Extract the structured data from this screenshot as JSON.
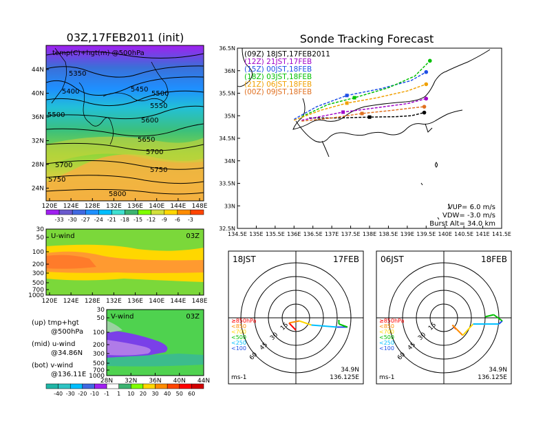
{
  "init_title": "03Z,17FEB2011 (init)",
  "main_title": "Sonde Tracking Forecast",
  "map_panel": {
    "label": "temp(C)+hgt(m) @500hPa",
    "x_ticks": [
      "120E",
      "124E",
      "128E",
      "132E",
      "136E",
      "140E",
      "144E",
      "148E"
    ],
    "y_ticks": [
      "44N",
      "40N",
      "36N",
      "32N",
      "28N",
      "24N"
    ],
    "contour_labels": [
      "5350",
      "5400",
      "5450",
      "5500",
      "5550",
      "5500",
      "5600",
      "5650",
      "5700",
      "5700",
      "5750",
      "5750",
      "5800",
      "5550",
      "5500",
      "5700",
      "5400"
    ],
    "colorbar": [
      "-33",
      "-30",
      "-27",
      "-24",
      "-21",
      "-18",
      "-15",
      "-12",
      "-9",
      "-6",
      "-3"
    ],
    "colorbar_colors": [
      "#a020f0",
      "#6a5acd",
      "#4169e1",
      "#1e90ff",
      "#00bfff",
      "#40e0d0",
      "#3cb371",
      "#7fff00",
      "#d2e03c",
      "#ffd700",
      "#ff8c00",
      "#ff4500"
    ]
  },
  "u_panel": {
    "label": "U-wind",
    "time": "03Z",
    "y_ticks": [
      "30",
      "50",
      "100",
      "200",
      "300",
      "500",
      "700",
      "1000"
    ],
    "x_ticks": [
      "120E",
      "124E",
      "128E",
      "132E",
      "136E",
      "140E",
      "144E",
      "148E"
    ]
  },
  "v_panel": {
    "label": "V-wind",
    "time": "03Z",
    "y_ticks": [
      "30",
      "50",
      "100",
      "200",
      "300",
      "500",
      "700",
      "1000"
    ],
    "x_ticks": [
      "28N",
      "32N",
      "36N",
      "40N",
      "44N"
    ],
    "colorbar": [
      "-40",
      "-30",
      "-20",
      "-10",
      "-1",
      "1",
      "10",
      "20",
      "30",
      "40",
      "50",
      "60"
    ],
    "colorbar_colors": [
      "#1fb5a6",
      "#2ec4c4",
      "#00bfff",
      "#4169e1",
      "#a020f0",
      "#ffffff",
      "#3cb371",
      "#7fff00",
      "#ffd700",
      "#ff8c00",
      "#ff4500",
      "#ff0000",
      "#d10000"
    ]
  },
  "side_notes": [
    {
      "line1": "(up) tmp+hgt",
      "line2": "@500hPa"
    },
    {
      "line1": "(mid) u-wind",
      "line2": "@34.86N"
    },
    {
      "line1": "(bot) v-wind",
      "line2": "@136.11E"
    }
  ],
  "chart_data": {
    "type": "line",
    "title": "Sonde Tracking Forecast",
    "xlim": [
      134.5,
      141.5
    ],
    "ylim": [
      32.5,
      36.5
    ],
    "x_ticks": [
      "134.5E",
      "135E",
      "135.5E",
      "136E",
      "136.5E",
      "137E",
      "137.5E",
      "138E",
      "138.5E",
      "139E",
      "139.5E",
      "140E",
      "140.5E",
      "141E",
      "141.5E"
    ],
    "y_ticks": [
      "36.5N",
      "36N",
      "35.5N",
      "35N",
      "34.5N",
      "34N",
      "33.5N",
      "33N",
      "32.5N"
    ],
    "series": [
      {
        "name": "(09Z) 18JST,17FEB2011",
        "color": "#000000",
        "dashed": true,
        "points": [
          [
            136.4,
            34.95
          ],
          [
            137.2,
            34.95
          ],
          [
            138.0,
            34.97
          ],
          [
            138.7,
            34.98
          ],
          [
            139.1,
            35.0
          ],
          [
            139.45,
            35.07
          ]
        ]
      },
      {
        "name": "(12Z) 21JST,17FEB",
        "color": "#a000c8",
        "dashed": true,
        "points": [
          [
            136.2,
            34.9
          ],
          [
            136.8,
            35.0
          ],
          [
            137.3,
            35.08
          ],
          [
            138.2,
            35.18
          ],
          [
            139.0,
            35.27
          ],
          [
            139.5,
            35.38
          ]
        ]
      },
      {
        "name": "(15Z) 00JST,18FEB",
        "color": "#1e4fe6",
        "dashed": true,
        "points": [
          [
            136.0,
            34.92
          ],
          [
            136.6,
            35.2
          ],
          [
            137.4,
            35.45
          ],
          [
            138.3,
            35.6
          ],
          [
            139.1,
            35.78
          ],
          [
            139.5,
            35.97
          ]
        ]
      },
      {
        "name": "(18Z) 03JST,18FEB",
        "color": "#00c000",
        "dashed": true,
        "points": [
          [
            136.2,
            34.98
          ],
          [
            136.9,
            35.25
          ],
          [
            137.6,
            35.4
          ],
          [
            138.5,
            35.62
          ],
          [
            139.2,
            35.88
          ],
          [
            139.6,
            36.22
          ]
        ]
      },
      {
        "name": "(21Z) 06JST,18FEB",
        "color": "#f0a000",
        "dashed": true,
        "points": [
          [
            136.0,
            34.9
          ],
          [
            136.7,
            35.12
          ],
          [
            137.4,
            35.28
          ],
          [
            138.2,
            35.4
          ],
          [
            139.0,
            35.55
          ],
          [
            139.5,
            35.7
          ]
        ]
      },
      {
        "name": "(00Z) 09JST,18FEB",
        "color": "#e07020",
        "dashed": true,
        "points": [
          [
            136.2,
            34.88
          ],
          [
            137.0,
            34.95
          ],
          [
            137.8,
            35.05
          ],
          [
            138.6,
            35.12
          ],
          [
            139.2,
            35.18
          ],
          [
            139.45,
            35.2
          ]
        ]
      }
    ],
    "annotations": [
      "VUP= 6.0 m/s",
      "VDW= -3.0 m/s",
      "Burst Alt= 34.0 km"
    ]
  },
  "hodographs": [
    {
      "left_label": "18JST",
      "right_label": "17FEB",
      "ring_labels": [
        "15",
        "30",
        "45",
        "60"
      ],
      "lat": "34.9N",
      "lon": "136.125E",
      "units": "ms-1",
      "legend": [
        {
          "text": "≥850hPa",
          "color": "#ff0000"
        },
        {
          "text": "<850",
          "color": "#ff8c00"
        },
        {
          "text": "<700",
          "color": "#ffd700"
        },
        {
          "text": "<500",
          "color": "#00c000"
        },
        {
          "text": "<250",
          "color": "#00bfff"
        },
        {
          "text": "<100",
          "color": "#1e4fe6"
        }
      ]
    },
    {
      "left_label": "06JST",
      "right_label": "18FEB",
      "ring_labels": [
        "15",
        "30",
        "45",
        "60"
      ],
      "lat": "34.9N",
      "lon": "136.125E",
      "units": "ms-1",
      "legend": [
        {
          "text": "≥850hPa",
          "color": "#ff0000"
        },
        {
          "text": "<850",
          "color": "#ff8c00"
        },
        {
          "text": "<700",
          "color": "#ffd700"
        },
        {
          "text": "<500",
          "color": "#00c000"
        },
        {
          "text": "<250",
          "color": "#00bfff"
        },
        {
          "text": "<100",
          "color": "#1e4fe6"
        }
      ]
    }
  ]
}
